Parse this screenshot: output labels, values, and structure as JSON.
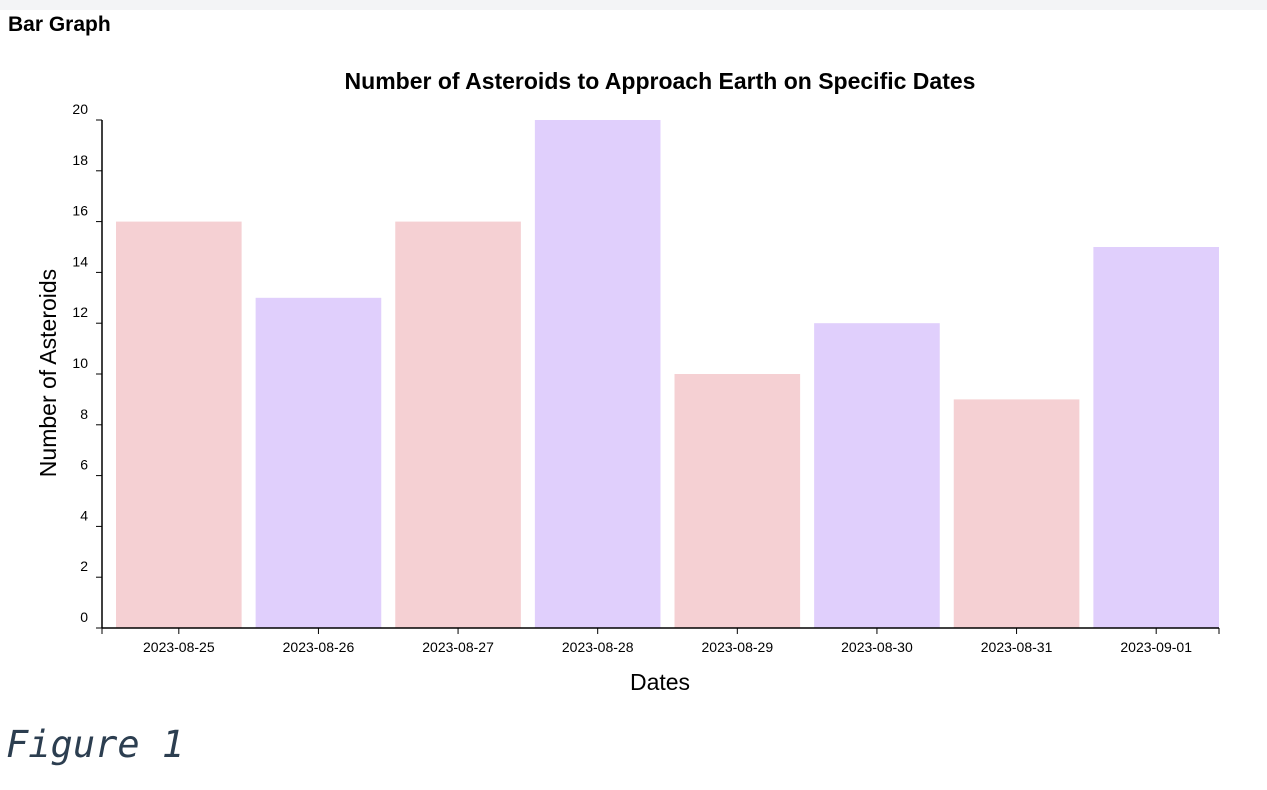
{
  "page": {
    "section_heading": "Bar Graph",
    "caption": "Figure 1"
  },
  "chart_data": {
    "type": "bar",
    "title": "Number of Asteroids to Approach Earth on Specific Dates",
    "xlabel": "Dates",
    "ylabel": "Number of Asteroids",
    "categories": [
      "2023-08-25",
      "2023-08-26",
      "2023-08-27",
      "2023-08-28",
      "2023-08-29",
      "2023-08-30",
      "2023-08-31",
      "2023-09-01"
    ],
    "values": [
      16,
      13,
      16,
      20,
      10,
      12,
      9,
      15
    ],
    "ylim": [
      0,
      20
    ],
    "yticks": [
      0,
      2,
      4,
      6,
      8,
      10,
      12,
      14,
      16,
      18,
      20
    ],
    "bar_colors": [
      "#f5d0d3",
      "#e0cffc"
    ],
    "grid": false,
    "legend": "none"
  }
}
